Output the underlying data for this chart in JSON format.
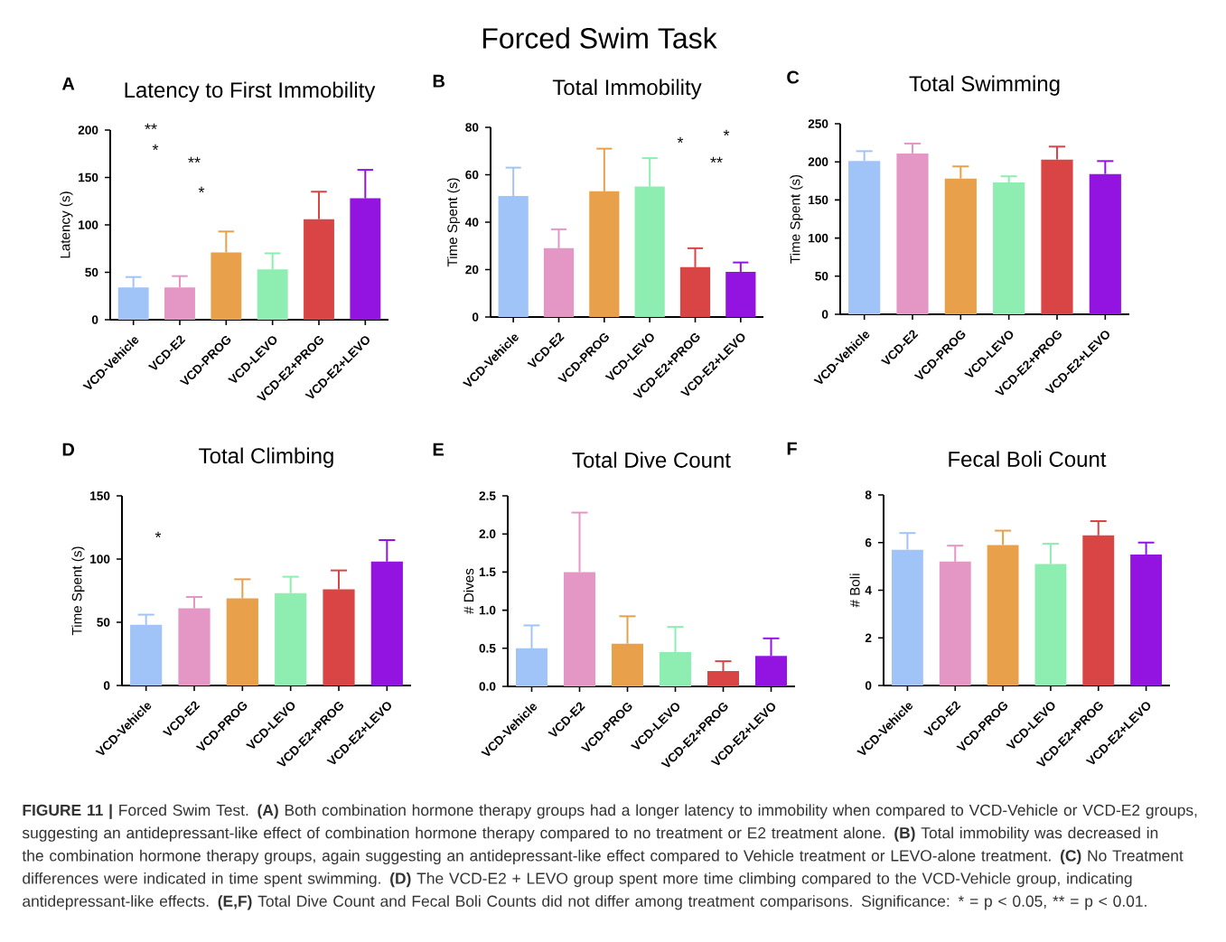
{
  "chart_data": [
    {
      "type": "other",
      "title": "Forced Swim Task",
      "annotations": [
        "**FIGURE 11 |** Forced Swim Test. **(A)** Both combination hormone therapy groups had a longer latency to immobility when compared to VCD-Vehicle or VCD-E2 groups, suggesting an antidepressant-like effect of combination hormone therapy compared to no treatment or E2 treatment alone. **(B)** Total immobility was decreased in the combination hormone therapy groups, again suggesting an antidepressant-like effect compared to Vehicle treatment or LEVO-alone treatment. **(C)** No Treatment differences were indicated in time spent swimming. **(D)** The VCD-E2 + LEVO group spent more time climbing compared to the VCD-Vehicle group, indicating antidepressant-like effects. **(E,F)** Total Dive Count and Fecal Boli Counts did not differ among treatment comparisons.",
        "Significance: * = p < 0.05,",
        "** = p < 0.01."
      ]
    },
    {
      "type": "bar",
      "title": "Latency to First Immobility",
      "ylabel": "Latency (s)",
      "categories": [
        "VCD-Vehicle",
        "VCD-E2",
        "VCD-PROG",
        "VCD-LEVO",
        "VCD-E2+PROG",
        "VCD-E2+LEVO"
      ],
      "values": [
        34,
        34,
        71,
        53,
        106,
        128
      ],
      "errors": [
        [
          34,
          45
        ],
        [
          34,
          46
        ],
        [
          71,
          93
        ],
        [
          53,
          70
        ],
        [
          106,
          135
        ],
        [
          128,
          158
        ]
      ],
      "colors": [
        "#a0c4f8",
        "#e496c4",
        "#e8a04a",
        "#8eedb0",
        "#d94545",
        "#9314e0"
      ],
      "ylim": [
        0,
        200
      ],
      "yticks": [
        0,
        50,
        100,
        150,
        200
      ],
      "annotations": [
        "A",
        "**",
        "*",
        "**",
        "*"
      ]
    },
    {
      "type": "bar",
      "title": "Total Immobility",
      "ylabel": "Time Spent (s)",
      "categories": [
        "VCD-Vehicle",
        "VCD-E2",
        "VCD-PROG",
        "VCD-LEVO",
        "VCD-E2+PROG",
        "VCD-E2+LEVO"
      ],
      "values": [
        51,
        29,
        53,
        55,
        21,
        19
      ],
      "errors": [
        [
          51,
          63
        ],
        [
          29,
          37
        ],
        [
          53,
          71
        ],
        [
          55,
          67
        ],
        [
          21,
          29
        ],
        [
          19,
          23
        ]
      ],
      "colors": [
        "#a0c4f8",
        "#e496c4",
        "#e8a04a",
        "#8eedb0",
        "#d94545",
        "#9314e0"
      ],
      "ylim": [
        0,
        80
      ],
      "yticks": [
        0,
        20,
        40,
        60,
        80
      ],
      "annotations": [
        "B",
        "*",
        "*",
        "**"
      ]
    },
    {
      "type": "bar",
      "title": "Total Swimming",
      "ylabel": "Time Spent (s)",
      "categories": [
        "VCD-Vehicle",
        "VCD-E2",
        "VCD-PROG",
        "VCD-LEVO",
        "VCD-E2+PROG",
        "VCD-E2+LEVO"
      ],
      "values": [
        201,
        211,
        178,
        173,
        203,
        184
      ],
      "errors": [
        [
          201,
          214
        ],
        [
          211,
          224
        ],
        [
          178,
          194
        ],
        [
          173,
          181
        ],
        [
          203,
          220
        ],
        [
          184,
          201
        ]
      ],
      "colors": [
        "#a0c4f8",
        "#e496c4",
        "#e8a04a",
        "#8eedb0",
        "#d94545",
        "#9314e0"
      ],
      "ylim": [
        0,
        250
      ],
      "yticks": [
        0,
        50,
        100,
        150,
        200,
        250
      ],
      "annotations": [
        "C"
      ]
    },
    {
      "type": "bar",
      "title": "Total Climbing",
      "ylabel": "Time Spent (s)",
      "categories": [
        "VCD-Vehicle",
        "VCD-E2",
        "VCD-PROG",
        "VCD-LEVO",
        "VCD-E2+PROG",
        "VCD-E2+LEVO"
      ],
      "values": [
        48,
        61,
        69,
        73,
        76,
        98
      ],
      "errors": [
        [
          48,
          56
        ],
        [
          61,
          70
        ],
        [
          69,
          84
        ],
        [
          73,
          86
        ],
        [
          76,
          91
        ],
        [
          98,
          115
        ]
      ],
      "colors": [
        "#a0c4f8",
        "#e496c4",
        "#e8a04a",
        "#8eedb0",
        "#d94545",
        "#9314e0"
      ],
      "ylim": [
        0,
        150
      ],
      "yticks": [
        0,
        50,
        100,
        150
      ],
      "annotations": [
        "D",
        "*"
      ]
    },
    {
      "type": "bar",
      "title": "Total Dive Count",
      "ylabel": "# Dives",
      "categories": [
        "VCD-Vehicle",
        "VCD-E2",
        "VCD-PROG",
        "VCD-LEVO",
        "VCD-E2+PROG",
        "VCD-E2+LEVO"
      ],
      "values": [
        0.5,
        1.5,
        0.56,
        0.45,
        0.2,
        0.4
      ],
      "errors": [
        [
          0.5,
          0.8
        ],
        [
          1.5,
          2.28
        ],
        [
          0.56,
          0.92
        ],
        [
          0.45,
          0.78
        ],
        [
          0.2,
          0.33
        ],
        [
          0.4,
          0.63
        ]
      ],
      "colors": [
        "#a0c4f8",
        "#e496c4",
        "#e8a04a",
        "#8eedb0",
        "#d94545",
        "#9314e0"
      ],
      "ylim": [
        0,
        2.5
      ],
      "yticks": [
        {
          "value": 0,
          "label": "0.0"
        },
        0.5,
        {
          "value": 1,
          "label": "1.0"
        },
        1.5,
        {
          "value": 2,
          "label": "2.0"
        },
        2.5
      ],
      "annotations": [
        "E"
      ]
    },
    {
      "type": "bar",
      "title": "Fecal Boli Count",
      "ylabel": "# Boli",
      "categories": [
        "VCD-Vehicle",
        "VCD-E2",
        "VCD-PROG",
        "VCD-LEVO",
        "VCD-E2+PROG",
        "VCD-E2+LEVO"
      ],
      "values": [
        5.7,
        5.2,
        5.9,
        5.1,
        6.3,
        5.5
      ],
      "errors": [
        [
          5.7,
          6.4
        ],
        [
          5.2,
          5.87
        ],
        [
          5.9,
          6.5
        ],
        [
          5.1,
          5.95
        ],
        [
          6.3,
          6.9
        ],
        [
          5.5,
          6.0
        ]
      ],
      "colors": [
        "#a0c4f8",
        "#e496c4",
        "#e8a04a",
        "#8eedb0",
        "#d94545",
        "#9314e0"
      ],
      "ylim": [
        0,
        8
      ],
      "yticks": [
        0,
        2,
        4,
        6,
        8
      ],
      "annotations": [
        "F"
      ]
    }
  ]
}
